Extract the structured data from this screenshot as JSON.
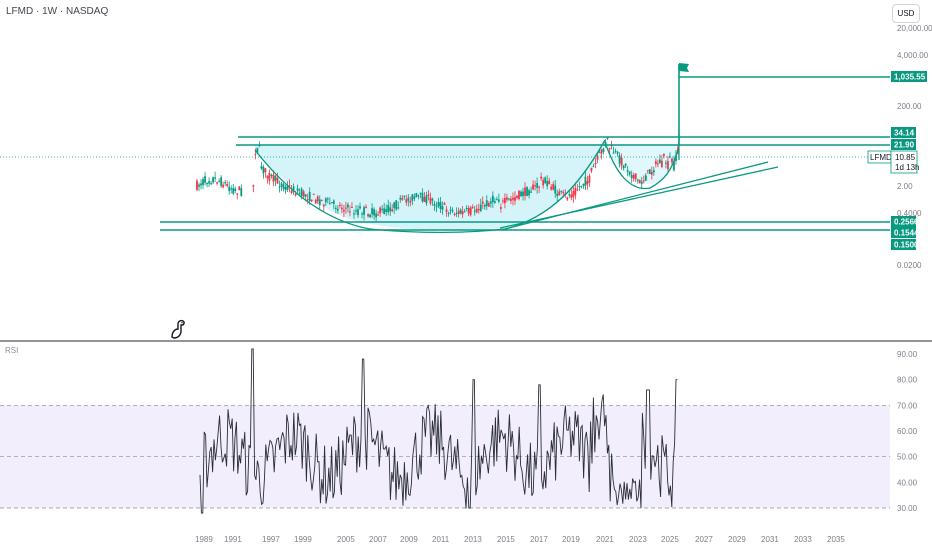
{
  "header": {
    "symbol_line": "LFMD · 1W · NASDAQ",
    "currency": "USD"
  },
  "indicator": {
    "label": "RSI"
  },
  "colors": {
    "accent": "#089981",
    "fill": "#c6f0f8",
    "rsi_band": "#f2eefc",
    "candle_up": "#089981",
    "candle_down": "#f23645",
    "rsi_line": "#2a2e39"
  },
  "icons": {
    "logo": "dino-logo-icon",
    "target": "flag-icon"
  },
  "chart_data": [
    {
      "type": "candlestick",
      "title": "LFMD · 1W · NASDAQ",
      "scale": "log",
      "x_tick_labels": [
        "1989",
        "1991",
        "1997",
        "1999",
        "2005",
        "2007",
        "2009",
        "2011",
        "2013",
        "2015",
        "2017",
        "2019",
        "2021",
        "2023",
        "2025",
        "2027",
        "2029",
        "2031",
        "2033",
        "2035"
      ],
      "y_tick_labels": [
        "20,000.00",
        "4,000.00",
        "200.00",
        "2.00",
        "0.4000",
        "0.0200"
      ],
      "price_levels": [
        {
          "label": "1,035.55",
          "value": 1035.55
        },
        {
          "label": "34.14",
          "value": 34.14
        },
        {
          "label": "21.90",
          "value": 21.9
        },
        {
          "label": "0.2566",
          "value": 0.2566
        },
        {
          "label": "0.1544",
          "value": 0.1544
        },
        {
          "label": "0.1500",
          "value": 0.15
        }
      ],
      "last_price": {
        "symbol": "LFMD",
        "value": "10.85",
        "countdown": "1d 13h"
      },
      "annotations": [
        "cup and handle pattern",
        "horizontal resistance 34.14 / 21.90",
        "support 0.2566 / 0.1544",
        "rising trendlines",
        "projected target 1,035.55"
      ]
    },
    {
      "type": "line",
      "title": "RSI",
      "y_tick_labels": [
        "90.00",
        "80.00",
        "70.00",
        "60.00",
        "50.00",
        "40.00",
        "30.00"
      ],
      "ylim": [
        28,
        92
      ],
      "band": [
        30,
        70
      ]
    }
  ]
}
